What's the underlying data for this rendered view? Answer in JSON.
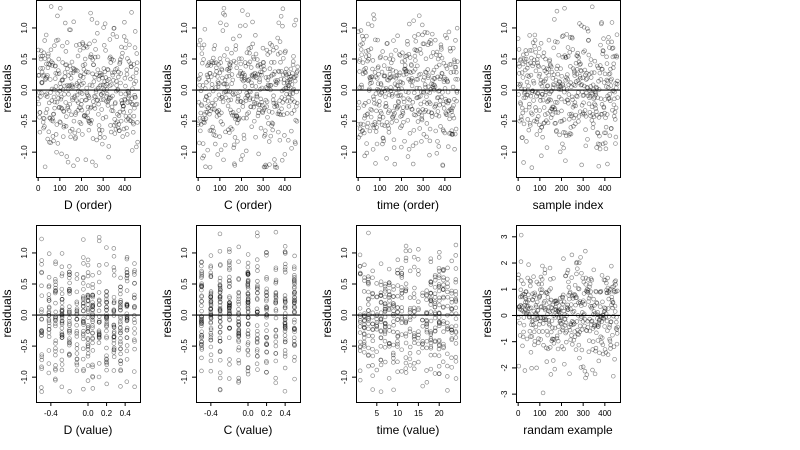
{
  "chart_data": [
    {
      "type": "scatter",
      "xlabel": "D (order)",
      "ylabel": "residuals",
      "xlim": [
        -10,
        470
      ],
      "ylim": [
        -1.4,
        1.45
      ],
      "xticks": [
        0,
        100,
        200,
        300,
        400
      ],
      "xtick_labels": [
        "0",
        "100",
        "200",
        "300",
        "400"
      ],
      "yticks": [
        -1.0,
        -0.5,
        0.0,
        0.5,
        1.0
      ],
      "ytick_labels": [
        "-1.0",
        "-0.5",
        "0.0",
        "0.5",
        "1.0"
      ],
      "reference_line": 0,
      "x_kind": "index",
      "n": 460,
      "y_spread": 0.5,
      "y_min": -1.25,
      "y_max": 1.35,
      "seed": 11
    },
    {
      "type": "scatter",
      "xlabel": "C (order)",
      "ylabel": "residuals",
      "xlim": [
        -10,
        470
      ],
      "ylim": [
        -1.4,
        1.45
      ],
      "xticks": [
        0,
        100,
        200,
        300,
        400
      ],
      "xtick_labels": [
        "0",
        "100",
        "200",
        "300",
        "400"
      ],
      "yticks": [
        -1.0,
        -0.5,
        0.0,
        0.5,
        1.0
      ],
      "ytick_labels": [
        "-1.0",
        "-0.5",
        "0.0",
        "0.5",
        "1.0"
      ],
      "reference_line": 0,
      "x_kind": "index",
      "n": 460,
      "y_spread": 0.5,
      "y_min": -1.25,
      "y_max": 1.35,
      "seed": 23
    },
    {
      "type": "scatter",
      "xlabel": "time (order)",
      "ylabel": "residuals",
      "xlim": [
        -10,
        470
      ],
      "ylim": [
        -1.4,
        1.45
      ],
      "xticks": [
        0,
        100,
        200,
        300,
        400
      ],
      "xtick_labels": [
        "0",
        "100",
        "200",
        "300",
        "400"
      ],
      "yticks": [
        -1.0,
        -0.5,
        0.0,
        0.5,
        1.0
      ],
      "ytick_labels": [
        "-1.0",
        "-0.5",
        "0.0",
        "0.5",
        "1.0"
      ],
      "reference_line": 0,
      "x_kind": "index",
      "n": 460,
      "y_spread": 0.5,
      "y_min": -1.25,
      "y_max": 1.35,
      "seed": 37
    },
    {
      "type": "scatter",
      "xlabel": "sample index",
      "ylabel": "residuals",
      "xlim": [
        -10,
        470
      ],
      "ylim": [
        -1.4,
        1.45
      ],
      "xticks": [
        0,
        100,
        200,
        300,
        400
      ],
      "xtick_labels": [
        "0",
        "100",
        "200",
        "300",
        "400"
      ],
      "yticks": [
        -1.0,
        -0.5,
        0.0,
        0.5,
        1.0
      ],
      "ytick_labels": [
        "-1.0",
        "-0.5",
        "0.0",
        "0.5",
        "1.0"
      ],
      "reference_line": 0,
      "x_kind": "index",
      "n": 460,
      "y_spread": 0.5,
      "y_min": -1.25,
      "y_max": 1.35,
      "seed": 41
    },
    {
      "type": "scatter",
      "xlabel": "D (value)",
      "ylabel": "residuals",
      "xlim": [
        -0.56,
        0.56
      ],
      "ylim": [
        -1.4,
        1.45
      ],
      "xticks": [
        -0.4,
        0.0,
        0.2,
        0.4
      ],
      "xtick_labels": [
        "-0.4",
        "0.0",
        "0.2",
        "0.4"
      ],
      "yticks": [
        -1.0,
        -0.5,
        0.0,
        0.5,
        1.0
      ],
      "ytick_labels": [
        "-1.0",
        "-0.5",
        "0.0",
        "0.5",
        "1.0"
      ],
      "reference_line": 0,
      "x_kind": "columns",
      "x_columns": [
        -0.5,
        -0.42,
        -0.35,
        -0.28,
        -0.2,
        -0.12,
        -0.05,
        0.0,
        0.05,
        0.12,
        0.2,
        0.28,
        0.35,
        0.42,
        0.5
      ],
      "n": 460,
      "y_spread": 0.5,
      "y_min": -1.25,
      "y_max": 1.35,
      "seed": 53
    },
    {
      "type": "scatter",
      "xlabel": "C (value)",
      "ylabel": "residuals",
      "xlim": [
        -0.56,
        0.56
      ],
      "ylim": [
        -1.4,
        1.45
      ],
      "xticks": [
        -0.4,
        0.0,
        0.2,
        0.4
      ],
      "xtick_labels": [
        "-0.4",
        "0.0",
        "0.2",
        "0.4"
      ],
      "yticks": [
        -1.0,
        -0.5,
        0.0,
        0.5,
        1.0
      ],
      "ytick_labels": [
        "-1.0",
        "-0.5",
        "0.0",
        "0.5",
        "1.0"
      ],
      "reference_line": 0,
      "x_kind": "columns",
      "x_columns": [
        -0.5,
        -0.4,
        -0.3,
        -0.2,
        -0.1,
        0.0,
        0.1,
        0.2,
        0.3,
        0.4,
        0.5
      ],
      "n": 460,
      "y_spread": 0.5,
      "y_min": -1.25,
      "y_max": 1.35,
      "seed": 67
    },
    {
      "type": "scatter",
      "xlabel": "time (value)",
      "ylabel": "residuals",
      "xlim": [
        0,
        25
      ],
      "ylim": [
        -1.4,
        1.45
      ],
      "xticks": [
        5,
        10,
        15,
        20
      ],
      "xtick_labels": [
        "5",
        "10",
        "15",
        "20"
      ],
      "yticks": [
        -1.0,
        -0.5,
        0.0,
        0.5,
        1.0
      ],
      "ytick_labels": [
        "-1.0",
        "-0.5",
        "0.0",
        "0.5",
        "1.0"
      ],
      "reference_line": 0,
      "x_kind": "columns",
      "x_columns": [
        1,
        2,
        3,
        4,
        5,
        6,
        7,
        8,
        9,
        10,
        11,
        12,
        13,
        14,
        15,
        16,
        17,
        18,
        19,
        20,
        21,
        22,
        23,
        24
      ],
      "n": 460,
      "y_spread": 0.5,
      "y_min": -1.25,
      "y_max": 1.35,
      "seed": 79
    },
    {
      "type": "scatter",
      "xlabel": "randam example",
      "ylabel": "residuals",
      "xlim": [
        -10,
        470
      ],
      "ylim": [
        -3.3,
        3.45
      ],
      "xticks": [
        0,
        100,
        200,
        300,
        400
      ],
      "xtick_labels": [
        "0",
        "100",
        "200",
        "300",
        "400"
      ],
      "yticks": [
        -3,
        -2,
        -1,
        0,
        1,
        2,
        3
      ],
      "ytick_labels": [
        "-3",
        "-2",
        "-1",
        "0",
        "1",
        "2",
        "3"
      ],
      "reference_line": 0,
      "x_kind": "index",
      "n": 460,
      "y_spread": 1.0,
      "y_min": -3.2,
      "y_max": 3.2,
      "seed": 97
    }
  ]
}
